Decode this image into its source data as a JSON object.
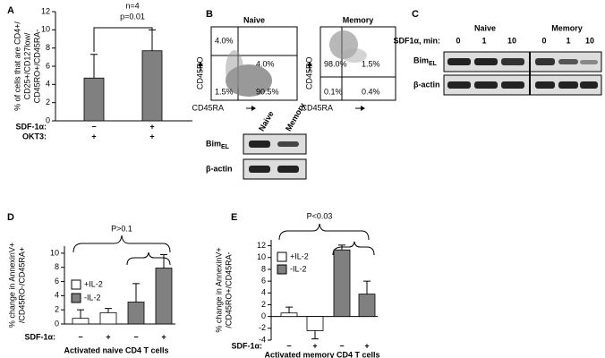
{
  "chart_data": [
    {
      "type": "bar",
      "label": "A",
      "ylabel": [
        "% of cells that are CD4+/",
        "CD25+/CD127low/",
        "CD45RO+/CD45RA-"
      ],
      "values": [
        4.7,
        7.7
      ],
      "errors": [
        2.6,
        2.3
      ],
      "color": "#808080",
      "ylim": [
        0,
        12
      ],
      "yticks": [
        0,
        2,
        4,
        6,
        8,
        10,
        12
      ],
      "annotations": [
        "n=4",
        "p=0.01"
      ],
      "rows": [
        {
          "label": "SDF-1α:",
          "values": [
            "−",
            "+"
          ]
        },
        {
          "label": "OKT3:",
          "values": [
            "+",
            "+"
          ]
        }
      ]
    },
    {
      "type": "bar",
      "label": "D",
      "ylabel": [
        "% change in AnnexinV+",
        "/CD45RO-/CD45RA+"
      ],
      "values": [
        0.8,
        1.6,
        3.1,
        7.9
      ],
      "errors": [
        1.2,
        0.6,
        2.6,
        1.9
      ],
      "bar_colors": [
        "#ffffff",
        "#ffffff",
        "#808080",
        "#808080"
      ],
      "legend": [
        {
          "name": "+IL-2",
          "color": "#ffffff"
        },
        {
          "name": "-IL-2",
          "color": "#808080"
        }
      ],
      "ylim": [
        0,
        11
      ],
      "yticks": [
        0,
        2,
        4,
        6,
        8,
        10
      ],
      "annotations": [
        "P>0.1"
      ],
      "rows": [
        {
          "label": "SDF-1α:",
          "values": [
            "−",
            "+",
            "−",
            "+"
          ]
        }
      ],
      "xlabel": "Activated naive CD4 T cells"
    },
    {
      "type": "bar",
      "label": "E",
      "ylabel": [
        "% change in AnnexinV+",
        "/CD45RO+/CD45RA-"
      ],
      "values": [
        0.6,
        -2.4,
        11.3,
        3.8
      ],
      "errors": [
        1.0,
        1.4,
        0.8,
        2.2
      ],
      "bar_colors": [
        "#ffffff",
        "#ffffff",
        "#808080",
        "#808080"
      ],
      "legend": [
        {
          "name": "+IL-2",
          "color": "#ffffff"
        },
        {
          "name": "-IL-2",
          "color": "#808080"
        }
      ],
      "ylim": [
        -4,
        13
      ],
      "yticks": [
        -4,
        -2,
        0,
        2,
        4,
        6,
        8,
        10,
        12
      ],
      "annotations": [
        "P<0.03"
      ],
      "rows": [
        {
          "label": "SDF-1α:",
          "values": [
            "−",
            "+",
            "−",
            "+"
          ]
        }
      ],
      "xlabel": "Activated memory CD4 T cells"
    }
  ],
  "flow": {
    "label": "B",
    "y_axis": "CD45RO",
    "x_axis": "CD45RA",
    "plots": [
      {
        "title": "Naive",
        "quadrants": [
          "4.0%",
          "4.0%",
          "1.5%",
          "90.5%"
        ]
      },
      {
        "title": "Memory",
        "quadrants": [
          "98.0%",
          "1.5%",
          "0.1%",
          "0.4%"
        ]
      }
    ],
    "blot": {
      "lanes": [
        "Naive",
        "Memory"
      ],
      "rows": [
        {
          "text": "Bim",
          "sub": "EL"
        },
        {
          "text": "β-actin"
        }
      ]
    }
  },
  "blot_c": {
    "label": "C",
    "condition": "SDF1α, min:",
    "groups": [
      {
        "name": "Naive",
        "times": [
          "0",
          "1",
          "10"
        ]
      },
      {
        "name": "Memory",
        "times": [
          "0",
          "1",
          "10"
        ]
      }
    ],
    "rows": [
      {
        "text": "Bim",
        "sub": "EL"
      },
      {
        "text": "β-actin"
      }
    ]
  }
}
